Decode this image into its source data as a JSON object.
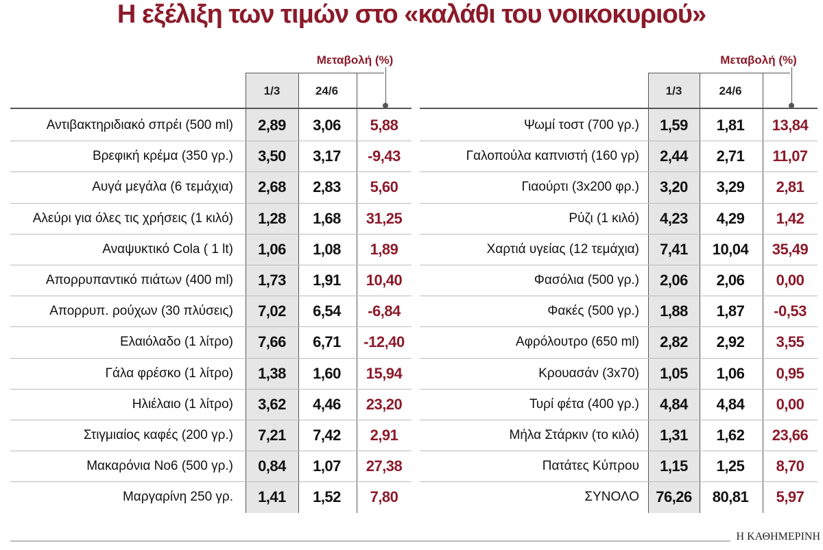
{
  "title": "Η εξέλιξη των τιμών στο «καλάθι του νοικοκυριού»",
  "tables": [
    {
      "change_header": "Μεταβολή (%)",
      "columns": [
        "1/3",
        "24/6"
      ],
      "rows": [
        [
          "Αντιβακτηριδιακό σπρέι (500 ml)",
          "2,89",
          "3,06",
          "5,88"
        ],
        [
          "Βρεφική κρέμα (350 γρ.)",
          "3,50",
          "3,17",
          "-9,43"
        ],
        [
          "Αυγά μεγάλα (6 τεμάχια)",
          "2,68",
          "2,83",
          "5,60"
        ],
        [
          "Αλεύρι για όλες τις χρήσεις (1 κιλό)",
          "1,28",
          "1,68",
          "31,25"
        ],
        [
          "Αναψυκτικό Cola ( 1 lt)",
          "1,06",
          "1,08",
          "1,89"
        ],
        [
          "Απορρυπαντικό πιάτων (400 ml)",
          "1,73",
          "1,91",
          "10,40"
        ],
        [
          "Απορρυπ. ρούχων (30 πλύσεις)",
          "7,02",
          "6,54",
          "-6,84"
        ],
        [
          "Ελαιόλαδο (1 λίτρο)",
          "7,66",
          "6,71",
          "-12,40"
        ],
        [
          "Γάλα φρέσκο (1 λίτρο)",
          "1,38",
          "1,60",
          "15,94"
        ],
        [
          "Ηλιέλαιο (1 λίτρο)",
          "3,62",
          "4,46",
          "23,20"
        ],
        [
          "Στιγμιαίος καφές (200 γρ.)",
          "7,21",
          "7,42",
          "2,91"
        ],
        [
          "Μακαρόνια Νο6 (500 γρ.)",
          "0,84",
          "1,07",
          "27,38"
        ],
        [
          "Μαργαρίνη 250 γρ.",
          "1,41",
          "1,52",
          "7,80"
        ]
      ]
    },
    {
      "change_header": "Μεταβολή (%)",
      "columns": [
        "1/3",
        "24/6"
      ],
      "rows": [
        [
          "Ψωμί τοστ (700 γρ.)",
          "1,59",
          "1,81",
          "13,84"
        ],
        [
          "Γαλοπούλα καπνιστή (160 γρ)",
          "2,44",
          "2,71",
          "11,07"
        ],
        [
          "Γιαούρτι (3x200 φρ.)",
          "3,20",
          "3,29",
          "2,81"
        ],
        [
          "Ρύζι (1 κιλό)",
          "4,23",
          "4,29",
          "1,42"
        ],
        [
          "Χαρτιά υγείας (12 τεμάχια)",
          "7,41",
          "10,04",
          "35,49"
        ],
        [
          "Φασόλια (500 γρ.)",
          "2,06",
          "2,06",
          "0,00"
        ],
        [
          "Φακές (500 γρ.)",
          "1,88",
          "1,87",
          "-0,53"
        ],
        [
          "Αφρόλουτρο (650 ml)",
          "2,82",
          "2,92",
          "3,55"
        ],
        [
          "Κρουασάν (3x70)",
          "1,05",
          "1,06",
          "0,95"
        ],
        [
          "Τυρί φέτα (400 γρ.)",
          "4,84",
          "4,84",
          "0,00"
        ],
        [
          "Μήλα Στάρκιν (το κιλό)",
          "1,31",
          "1,62",
          "23,66"
        ],
        [
          "Πατάτες Κύπρου",
          "1,15",
          "1,25",
          "8,70"
        ],
        [
          "ΣΥΝΟΛΟ",
          "76,26",
          "80,81",
          "5,97"
        ]
      ]
    }
  ],
  "source": "Η ΚΑΘΗΜΕΡΙΝΗ"
}
